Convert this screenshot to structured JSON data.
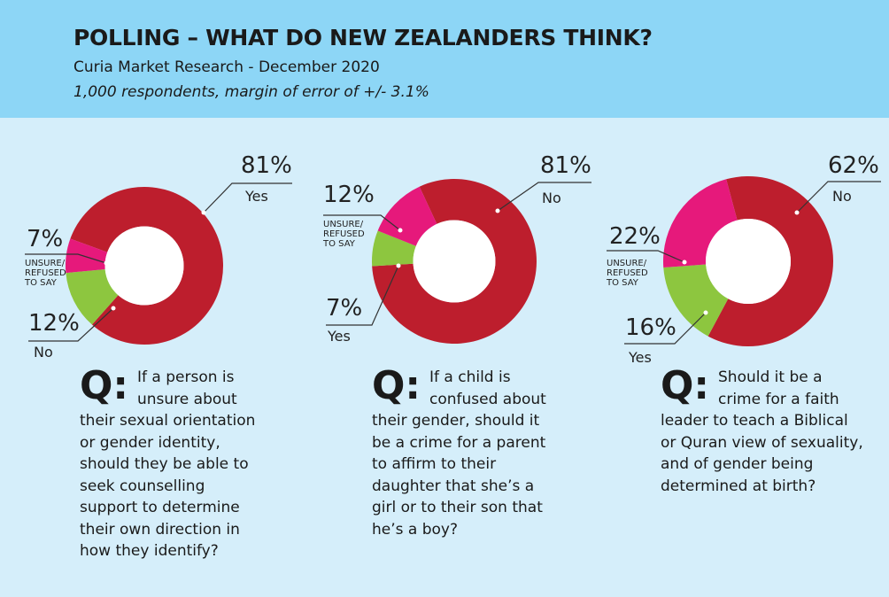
{
  "header": {
    "title": "POLLING – WHAT DO NEW ZEALANDERS THINK?",
    "subtitle": "Curia Market Research - December 2020",
    "note": "1,000 respondents, margin of error of +/- 3.1%"
  },
  "chart_data": [
    {
      "type": "pie",
      "donut": true,
      "categories": [
        "Yes",
        "No",
        "UNSURE/ REFUSED TO SAY"
      ],
      "values": [
        81,
        12,
        7
      ],
      "value_labels": [
        "81%",
        "12%",
        "7%"
      ],
      "colors": [
        "#bd1e2d",
        "#8dc63f",
        "#e6197b"
      ],
      "question_marker": "Q:",
      "question": "If a person is unsure about their sexual orientation or gender identity, should they be able to seek counselling support to determine their own direction in how they identify?"
    },
    {
      "type": "pie",
      "donut": true,
      "categories": [
        "No",
        "Yes",
        "UNSURE/ REFUSED TO SAY"
      ],
      "values": [
        81,
        7,
        12
      ],
      "value_labels": [
        "81%",
        "7%",
        "12%"
      ],
      "colors": [
        "#bd1e2d",
        "#8dc63f",
        "#e6197b"
      ],
      "question_marker": "Q:",
      "question": "If a child is confused about their gender, should it be a crime for a parent to affirm to their daughter that she’s a girl or to their son that he’s a boy?"
    },
    {
      "type": "pie",
      "donut": true,
      "categories": [
        "No",
        "Yes",
        "UNSURE/ REFUSED TO SAY"
      ],
      "values": [
        62,
        16,
        22
      ],
      "value_labels": [
        "62%",
        "16%",
        "22%"
      ],
      "colors": [
        "#bd1e2d",
        "#8dc63f",
        "#e6197b"
      ],
      "question_marker": "Q:",
      "question": "Should it be a crime for a faith leader to teach a Biblical or Quran view of sexuality, and of gender being determined at birth?"
    }
  ]
}
